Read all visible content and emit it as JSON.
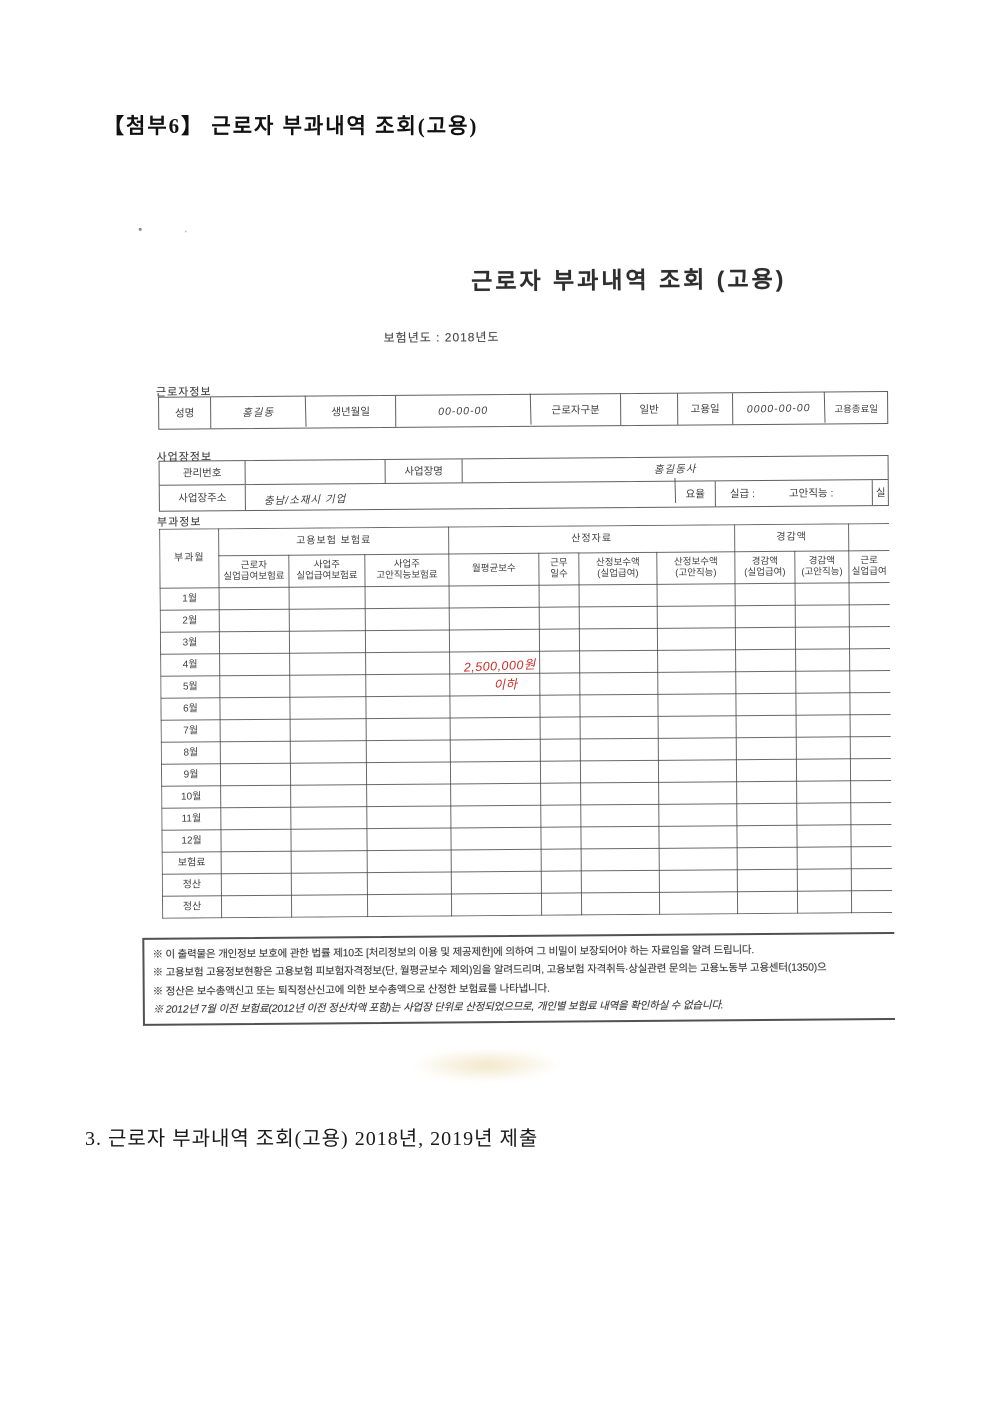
{
  "colors": {
    "handwriting_red": "#c9302a",
    "print_ink": "#3d3d3d"
  },
  "page": {
    "heading": "【첨부6】 근로자 부과내역 조회(고용)",
    "caption": "3. 근로자 부과내역 조회(고용) 2018년, 2019년 제출"
  },
  "scan": {
    "title": "근로자 부과내역 조회 (고용)",
    "insurance_year": "보험년도 : 2018년도",
    "worker": {
      "section": "근로자정보",
      "name_label": "성명",
      "name_value": "홍길동",
      "birth_label": "생년월일",
      "birth_value": "00-00-00",
      "type_label": "근로자구분",
      "type_value": "일반",
      "hire_label": "고용일",
      "hire_value": "0000-00-00",
      "end_label": "고용종료일"
    },
    "workplace": {
      "section": "사업장정보",
      "mgmt_label": "관리번호",
      "mgmt_value": "",
      "name_label": "사업장명",
      "name_value": "홍길동사",
      "addr_label": "사업장주소",
      "addr_value": "충남/소재시 기업",
      "rate_label": "요율",
      "rate_item1": "실급 :",
      "rate_item2": "고안직능 :",
      "edge_fragment": "실"
    },
    "levy": {
      "section": "부과정보",
      "groups": [
        "고용보험 보험료",
        "산정자료",
        "경감액"
      ],
      "columns": [
        "부과월",
        "근로자\n실업급여보험료",
        "사업주\n실업급여보험료",
        "사업주\n고안직능보험료",
        "월평균보수",
        "근무\n일수",
        "산정보수액\n(실업급여)",
        "산정보수액\n(고안직능)",
        "경감액\n(실업급여)",
        "경감액\n(고안직능)",
        "근로\n실업급여"
      ],
      "rows": [
        "1월",
        "2월",
        "3월",
        "4월",
        "5월",
        "6월",
        "7월",
        "8월",
        "9월",
        "10월",
        "11월",
        "12월",
        "보험료",
        "정산",
        "정산"
      ],
      "annotation_line1": "2,500,000원",
      "annotation_line2": "이하"
    },
    "footnotes": [
      "※ 이 출력물은 개인정보 보호에 관한 법률 제10조 [처리정보의 이용 및 제공제한]에 의하여 그 비밀이 보장되어야 하는 자료임을 알려 드립니다.",
      "※ 고용보험 고용정보현황은 고용보험 피보험자격정보(단, 월평균보수 제외)임을 알려드리며, 고용보험 자격취득·상실관련 문의는 고용노동부 고용센터(1350)으",
      "※ 정산은 보수총액신고 또는 퇴직정산신고에 의한 보수총액으로 산정한 보험료를 나타냅니다.",
      "※ 2012년 7월 이전 보험료(2012년 이전 정산차액 포함)는 사업장 단위로 산정되었으므로, 개인별 보험료 내역을 확인하실 수 없습니다."
    ]
  }
}
